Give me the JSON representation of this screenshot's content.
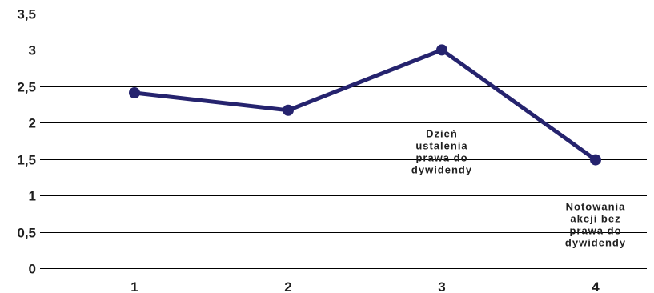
{
  "chart_data": {
    "type": "line",
    "title": "",
    "xlabel": "",
    "ylabel": "",
    "x": [
      "1",
      "2",
      "3",
      "4"
    ],
    "y_ticks": [
      "0",
      "0,5",
      "1",
      "1,5",
      "2",
      "2,5",
      "3",
      "3,5"
    ],
    "y_tick_values": [
      0,
      0.5,
      1,
      1.5,
      2,
      2.5,
      3,
      3.5
    ],
    "ylim": [
      0,
      3.5
    ],
    "grid": "horizontal",
    "legend": "none",
    "series": [
      {
        "values": [
          2.41,
          2.17,
          3.0,
          1.49
        ],
        "color": "#25236e"
      }
    ],
    "annotations": [
      {
        "x_index": 2,
        "y_anchor": 1.8,
        "lines": [
          "Dzień",
          "ustalenia",
          "prawa do",
          "dywidendy"
        ]
      },
      {
        "x_index": 3,
        "y_anchor": 0.8,
        "lines": [
          "Notowania",
          "akcji bez",
          "prawa do",
          "dywidendy"
        ]
      }
    ]
  }
}
